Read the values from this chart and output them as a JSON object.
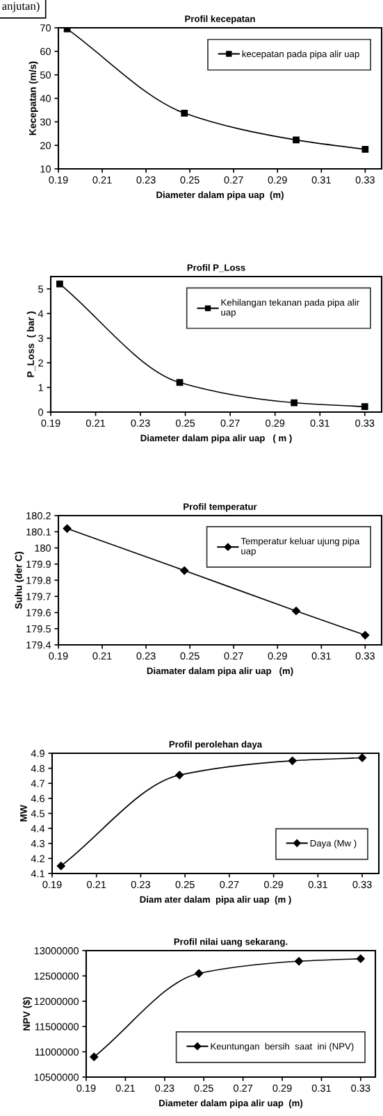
{
  "chart_data": [
    {
      "type": "line",
      "title": "Profil kecepatan",
      "xlabel": "Diameter dalam pipa uap  (m)",
      "ylabel": "Kecepatan (m/s)",
      "annotations": [
        "anjutan)"
      ],
      "x": [
        0.194,
        0.2475,
        0.2985,
        0.33
      ],
      "series": [
        {
          "name": "kecepatan pada pipa alir uap",
          "color": "#000000",
          "values": [
            69.5,
            33.7,
            22.3,
            18.3
          ]
        }
      ],
      "xlim": [
        0.19,
        0.3375
      ],
      "xticks": [
        {
          "value": 0.19,
          "label": "0.19"
        },
        {
          "value": 0.21,
          "label": "0.21"
        },
        {
          "value": 0.23,
          "label": "0.23"
        },
        {
          "value": 0.25,
          "label": "0.25"
        },
        {
          "value": 0.27,
          "label": "0.27"
        },
        {
          "value": 0.29,
          "label": "0.29"
        },
        {
          "value": 0.31,
          "label": "0.31"
        },
        {
          "value": 0.33,
          "label": "0.33"
        }
      ],
      "ylim": [
        10,
        70
      ],
      "yticks": [
        10,
        20,
        30,
        40,
        50,
        60,
        70
      ],
      "grid": false,
      "legend": "top right",
      "marker": "square",
      "line_style": "solid"
    },
    {
      "type": "line",
      "title": "Profil P_Loss",
      "xlabel": "Diameter dalam pipa alir uap   ( m )",
      "ylabel": "P_Loss  ( bar )",
      "x": [
        0.194,
        0.2475,
        0.2985,
        0.33
      ],
      "series": [
        {
          "name": "Kehilangan tekanan pada pipa alir\nuap",
          "color": "#000000",
          "values": [
            5.2,
            1.2,
            0.38,
            0.22
          ]
        }
      ],
      "xlim": [
        0.19,
        0.3375
      ],
      "xticks": [
        {
          "value": 0.19,
          "label": "0.19"
        },
        {
          "value": 0.21,
          "label": "0.21"
        },
        {
          "value": 0.23,
          "label": "0.23"
        },
        {
          "value": 0.25,
          "label": "0.25"
        },
        {
          "value": 0.27,
          "label": "0.27"
        },
        {
          "value": 0.29,
          "label": "0.29"
        },
        {
          "value": 0.31,
          "label": "0.31"
        },
        {
          "value": 0.33,
          "label": "0.33"
        }
      ],
      "ylim": [
        0,
        5.5
      ],
      "yticks": [
        0,
        1,
        2,
        3,
        4,
        5
      ],
      "grid": false,
      "legend": "top right",
      "marker": "square",
      "line_style": "solid"
    },
    {
      "type": "line",
      "title": "Profil temperatur",
      "xlabel": "Diamater dalam pipa alir uap   (m)",
      "ylabel": "Suhu (der C)",
      "x": [
        0.194,
        0.2475,
        0.2985,
        0.33
      ],
      "series": [
        {
          "name": "Temperatur keluar ujung pipa\nuap",
          "color": "#000000",
          "values": [
            180.12,
            179.86,
            179.61,
            179.46
          ]
        }
      ],
      "xlim": [
        0.19,
        0.3375
      ],
      "xticks": [
        {
          "value": 0.19,
          "label": "0.19"
        },
        {
          "value": 0.21,
          "label": "0.21"
        },
        {
          "value": 0.23,
          "label": "0.23"
        },
        {
          "value": 0.25,
          "label": "0.25"
        },
        {
          "value": 0.27,
          "label": "0.27"
        },
        {
          "value": 0.29,
          "label": "0.29"
        },
        {
          "value": 0.31,
          "label": "0.31"
        },
        {
          "value": 0.33,
          "label": "0.33"
        }
      ],
      "ylim": [
        179.4,
        180.2
      ],
      "yticks": [
        179.4,
        179.5,
        179.6,
        179.7,
        179.8,
        179.9,
        180,
        180.1,
        180.2
      ],
      "grid": false,
      "legend": "top right",
      "marker": "diamond",
      "line_style": "solid"
    },
    {
      "type": "line",
      "title": "Profil perolehan daya",
      "xlabel": "Diam ater dalam  pipa alir uap  (m )",
      "ylabel": "MW",
      "x": [
        0.194,
        0.2475,
        0.2985,
        0.33
      ],
      "series": [
        {
          "name": "Daya (Mw )",
          "color": "#000000",
          "values": [
            4.15,
            4.755,
            4.85,
            4.87
          ]
        }
      ],
      "xlim": [
        0.19,
        0.3375
      ],
      "xticks": [
        {
          "value": 0.19,
          "label": "0.19"
        },
        {
          "value": 0.21,
          "label": "0.21"
        },
        {
          "value": 0.23,
          "label": "0.23"
        },
        {
          "value": 0.25,
          "label": "0.25"
        },
        {
          "value": 0.27,
          "label": "0.27"
        },
        {
          "value": 0.29,
          "label": "0.29"
        },
        {
          "value": 0.31,
          "label": "0.31"
        },
        {
          "value": 0.33,
          "label": "0.33"
        }
      ],
      "ylim": [
        4.1,
        4.9
      ],
      "yticks": [
        4.1,
        4.2,
        4.3,
        4.4,
        4.5,
        4.6,
        4.7,
        4.8,
        4.9
      ],
      "grid": false,
      "legend": "bottom right",
      "marker": "diamond",
      "line_style": "solid"
    },
    {
      "type": "line",
      "title": "Profil nilai uang sekarang.",
      "xlabel": "Diameter dalam pipa alir uap  (m)",
      "ylabel": "NPV ($)",
      "x": [
        0.194,
        0.2475,
        0.2985,
        0.33
      ],
      "series": [
        {
          "name": "Keuntungan  bersih  saat  ini (NPV)",
          "color": "#000000",
          "values": [
            10900000,
            12550000,
            12790000,
            12840000
          ]
        }
      ],
      "xlim": [
        0.19,
        0.3375
      ],
      "xticks": [
        {
          "value": 0.19,
          "label": "0.19"
        },
        {
          "value": 0.21,
          "label": "0.21"
        },
        {
          "value": 0.23,
          "label": "0.23"
        },
        {
          "value": 0.25,
          "label": "0.25"
        },
        {
          "value": 0.27,
          "label": "0.27"
        },
        {
          "value": 0.29,
          "label": "0.29"
        },
        {
          "value": 0.31,
          "label": "0.31"
        },
        {
          "value": 0.33,
          "label": "0.33"
        }
      ],
      "ylim": [
        10500000,
        13000000
      ],
      "yticks": [
        10500000,
        11000000,
        11500000,
        12000000,
        12500000,
        13000000
      ],
      "grid": false,
      "legend": "bottom right",
      "marker": "diamond",
      "line_style": "solid"
    }
  ]
}
